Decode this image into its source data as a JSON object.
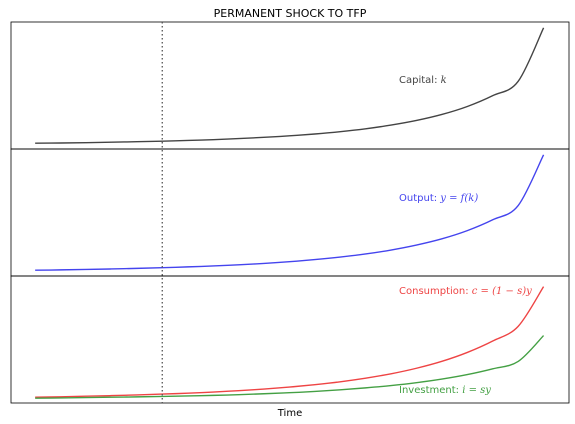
{
  "chart_data": {
    "type": "line",
    "title": "PERMANENT SHOCK TO TFP",
    "xlabel": "Time",
    "shock_marker": {
      "x": 20,
      "style": "dotted",
      "color": "#555555"
    },
    "xlim": [
      -3.8,
      84
    ],
    "x": [
      0,
      4,
      8,
      12,
      16,
      20,
      24,
      28,
      32,
      36,
      40,
      44,
      48,
      52,
      56,
      60,
      64,
      68,
      72,
      76,
      80
    ],
    "panels": [
      {
        "ylim": [
          -0.05,
          1.05
        ],
        "series": [
          {
            "name": "Capital",
            "var": "k",
            "color": "#444444",
            "values": [
              0.0,
              0.002,
              0.005,
              0.009,
              0.013,
              0.018,
              0.024,
              0.031,
              0.04,
              0.051,
              0.064,
              0.08,
              0.1,
              0.125,
              0.157,
              0.197,
              0.249,
              0.318,
              0.412,
              0.536,
              1.0
            ]
          }
        ],
        "labels": [
          {
            "series": 0,
            "text": "Capital: ",
            "math": "k"
          }
        ]
      },
      {
        "ylim": [
          -0.05,
          1.05
        ],
        "series": [
          {
            "name": "Output",
            "var": "y = f(k)",
            "color": "#4444ee",
            "values": [
              0.0,
              0.003,
              0.007,
              0.011,
              0.016,
              0.022,
              0.029,
              0.037,
              0.047,
              0.059,
              0.074,
              0.092,
              0.114,
              0.141,
              0.175,
              0.218,
              0.272,
              0.343,
              0.437,
              0.56,
              1.0
            ]
          }
        ],
        "labels": [
          {
            "series": 0,
            "text": "Output: ",
            "math": "y = f(k)"
          }
        ]
      },
      {
        "ylim": [
          -0.05,
          1.05
        ],
        "series": [
          {
            "name": "Consumption",
            "var": "c = (1 − s)y",
            "color": "#ee4444",
            "values": [
              0.0,
              0.004,
              0.009,
              0.014,
              0.02,
              0.027,
              0.035,
              0.045,
              0.057,
              0.071,
              0.088,
              0.109,
              0.134,
              0.165,
              0.203,
              0.251,
              0.311,
              0.388,
              0.487,
              0.614,
              0.958
            ]
          },
          {
            "name": "Investment",
            "var": "i = sy",
            "color": "#44a044",
            "values": [
              -0.008,
              -0.006,
              -0.003,
              0.0,
              0.003,
              0.007,
              0.011,
              0.016,
              0.022,
              0.03,
              0.039,
              0.05,
              0.064,
              0.081,
              0.101,
              0.126,
              0.157,
              0.196,
              0.246,
              0.31,
              0.534
            ]
          }
        ],
        "labels": [
          {
            "series": 0,
            "text": "Consumption: ",
            "math": "c = (1 − s)y"
          },
          {
            "series": 1,
            "text": "Investment: ",
            "math": "i = sy"
          }
        ]
      }
    ]
  }
}
